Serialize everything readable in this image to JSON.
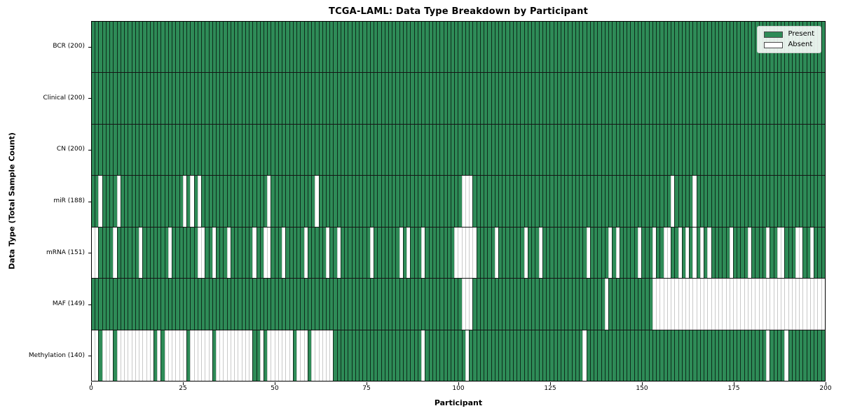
{
  "chart_data": {
    "type": "heatmap",
    "title": "TCGA-LAML: Data Type Breakdown by Participant",
    "xlabel": "Participant",
    "ylabel": "Data Type (Total Sample Count)",
    "x_ticks": [
      0,
      25,
      50,
      75,
      100,
      125,
      150,
      175,
      200
    ],
    "n_participants": 200,
    "x_range": [
      0,
      200
    ],
    "grid": false,
    "legend_position": "upper right",
    "legend": [
      {
        "label": "Present",
        "state": "present"
      },
      {
        "label": "Absent",
        "state": "absent"
      }
    ],
    "colors": {
      "present": "#2e8b57",
      "absent": "#ffffff"
    },
    "rows": [
      {
        "label": "BCR (200)",
        "data_type": "BCR",
        "present_count": 200,
        "absent_participants": []
      },
      {
        "label": "Clinical (200)",
        "data_type": "Clinical",
        "present_count": 200,
        "absent_participants": []
      },
      {
        "label": "CN (200)",
        "data_type": "CN",
        "present_count": 200,
        "absent_participants": []
      },
      {
        "label": "miR (188)",
        "data_type": "miR",
        "present_count": 188,
        "absent_participants": [
          2,
          7,
          25,
          27,
          29,
          48,
          61,
          101,
          102,
          103,
          158,
          164
        ]
      },
      {
        "label": "mRNA (151)",
        "data_type": "mRNA",
        "present_count": 151,
        "absent_participants": [
          0,
          1,
          6,
          13,
          21,
          29,
          30,
          33,
          37,
          44,
          47,
          48,
          52,
          58,
          64,
          67,
          76,
          84,
          86,
          90,
          99,
          100,
          101,
          102,
          103,
          104,
          110,
          118,
          122,
          135,
          141,
          143,
          149,
          153,
          156,
          157,
          160,
          162,
          164,
          166,
          168,
          174,
          179,
          184,
          187,
          188,
          192,
          193,
          196
        ]
      },
      {
        "label": "MAF (149)",
        "data_type": "MAF",
        "present_count": 149,
        "absent_participants": [
          101,
          102,
          103,
          140,
          153,
          154,
          155,
          156,
          157,
          158,
          159,
          160,
          161,
          162,
          163,
          164,
          165,
          166,
          167,
          168,
          169,
          170,
          171,
          172,
          173,
          174,
          175,
          176,
          177,
          178,
          179,
          180,
          181,
          182,
          183,
          184,
          185,
          186,
          187,
          188,
          189,
          190,
          191,
          192,
          193,
          194,
          195,
          196,
          197,
          198,
          199
        ]
      },
      {
        "label": "Methylation (140)",
        "data_type": "Methylation",
        "present_count": 140,
        "absent_participants": [
          0,
          1,
          3,
          4,
          5,
          7,
          8,
          9,
          10,
          11,
          12,
          13,
          14,
          15,
          16,
          18,
          20,
          21,
          22,
          23,
          24,
          25,
          27,
          28,
          29,
          30,
          31,
          32,
          34,
          35,
          36,
          37,
          38,
          39,
          40,
          41,
          42,
          43,
          46,
          48,
          49,
          50,
          51,
          52,
          53,
          54,
          56,
          57,
          58,
          60,
          61,
          62,
          63,
          64,
          65,
          90,
          102,
          134,
          184,
          189
        ]
      }
    ]
  }
}
